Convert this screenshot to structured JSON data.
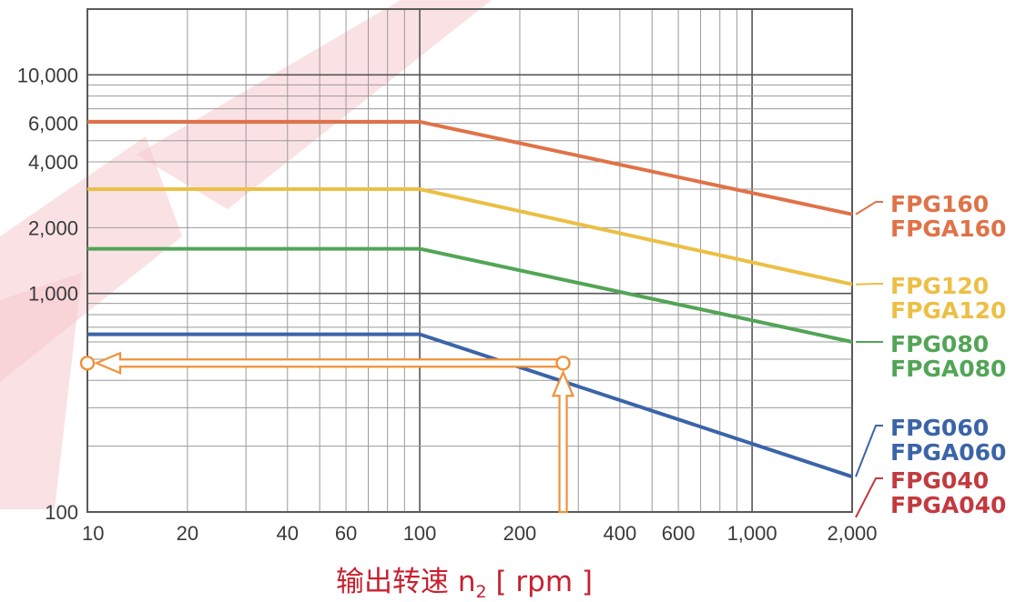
{
  "chart_data": {
    "type": "line",
    "title": "",
    "xlabel": "输出转速 n₂ [ rpm ]",
    "xlabel_parts": {
      "main": "输出转速 n",
      "sub": "2",
      "tail": " [ rpm ]"
    },
    "ylabel": "",
    "x_scale": "log",
    "y_scale": "log",
    "xlim": [
      10,
      2000
    ],
    "ylim": [
      100,
      20000
    ],
    "grid": true,
    "x_ticks": [
      {
        "value": 10,
        "label": "10"
      },
      {
        "value": 20,
        "label": "20"
      },
      {
        "value": 40,
        "label": "40"
      },
      {
        "value": 60,
        "label": "60"
      },
      {
        "value": 100,
        "label": "100"
      },
      {
        "value": 200,
        "label": "200"
      },
      {
        "value": 400,
        "label": "400"
      },
      {
        "value": 600,
        "label": "600"
      },
      {
        "value": 1000,
        "label": "1,000"
      },
      {
        "value": 2000,
        "label": "2,000"
      }
    ],
    "y_ticks": [
      {
        "value": 100,
        "label": "100"
      },
      {
        "value": 1000,
        "label": "1,000"
      },
      {
        "value": 2000,
        "label": "2,000"
      },
      {
        "value": 4000,
        "label": "4,000"
      },
      {
        "value": 6000,
        "label": "6,000"
      },
      {
        "value": 10000,
        "label": "10,000"
      }
    ],
    "series": [
      {
        "name": "FPG160 / FPGA160",
        "label_lines": [
          "FPG160",
          "FPGA160"
        ],
        "color": "#e07248",
        "x": [
          10,
          100,
          2000
        ],
        "y": [
          6100,
          6100,
          2300
        ]
      },
      {
        "name": "FPG120 / FPGA120",
        "label_lines": [
          "FPG120",
          "FPGA120"
        ],
        "color": "#ecbf45",
        "x": [
          10,
          100,
          2000
        ],
        "y": [
          3000,
          3000,
          1100
        ]
      },
      {
        "name": "FPG080 / FPGA080",
        "label_lines": [
          "FPG080",
          "FPGA080"
        ],
        "color": "#52a556",
        "x": [
          10,
          100,
          2000
        ],
        "y": [
          1600,
          1600,
          600
        ]
      },
      {
        "name": "FPG060 / FPGA060",
        "label_lines": [
          "FPG060",
          "FPGA060"
        ],
        "color": "#3b64a8",
        "x": [
          10,
          100,
          2000
        ],
        "y": [
          650,
          650,
          145
        ]
      },
      {
        "name": "FPG040 / FPGA040",
        "label_lines": [
          "FPG040",
          "FPGA040"
        ],
        "color": "#c23a3f",
        "x": [],
        "y": []
      }
    ],
    "annotation": {
      "type": "reading-arrow",
      "color": "#f0913a",
      "x_value": 270,
      "y_value": 480
    }
  }
}
